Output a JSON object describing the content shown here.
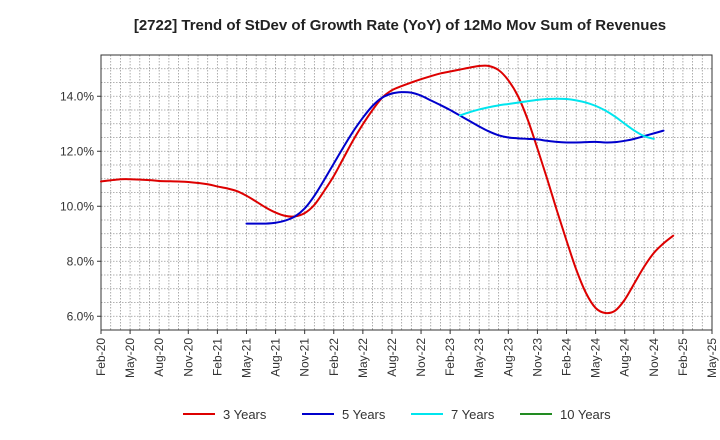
{
  "chart_data": {
    "type": "line",
    "title": "[2722]  Trend of StDev of Growth Rate (YoY) of 12Mo Mov Sum of Revenues",
    "xlabel": "",
    "ylabel": "",
    "ylim": [
      5.5,
      15.5
    ],
    "yticks": [
      6.0,
      8.0,
      10.0,
      12.0,
      14.0
    ],
    "ytick_labels": [
      "6.0%",
      "8.0%",
      "10.0%",
      "12.0%",
      "14.0%"
    ],
    "xrange": [
      0,
      63
    ],
    "xticks": [
      0,
      3,
      6,
      9,
      12,
      15,
      18,
      21,
      24,
      27,
      30,
      33,
      36,
      39,
      42,
      45,
      48,
      51,
      54,
      57,
      60,
      63
    ],
    "xtick_labels": [
      "Feb-20",
      "May-20",
      "Aug-20",
      "Nov-20",
      "Feb-21",
      "May-21",
      "Aug-21",
      "Nov-21",
      "Feb-22",
      "May-22",
      "Aug-22",
      "Nov-22",
      "Feb-23",
      "May-23",
      "Aug-23",
      "Nov-23",
      "Feb-24",
      "May-24",
      "Aug-24",
      "Nov-24",
      "Feb-25",
      "May-25"
    ],
    "grid": true,
    "legend_position": "bottom",
    "series": [
      {
        "name": "3 Years",
        "color": "#dd0000",
        "points": [
          [
            0,
            10.9
          ],
          [
            2,
            10.98
          ],
          [
            3,
            10.98
          ],
          [
            5,
            10.95
          ],
          [
            6,
            10.92
          ],
          [
            8,
            10.9
          ],
          [
            9,
            10.88
          ],
          [
            11,
            10.8
          ],
          [
            12,
            10.72
          ],
          [
            13,
            10.65
          ],
          [
            14,
            10.55
          ],
          [
            15,
            10.38
          ],
          [
            16,
            10.17
          ],
          [
            17,
            9.95
          ],
          [
            18,
            9.77
          ],
          [
            19,
            9.65
          ],
          [
            20,
            9.63
          ],
          [
            21,
            9.75
          ],
          [
            22,
            10.05
          ],
          [
            23,
            10.55
          ],
          [
            24,
            11.1
          ],
          [
            25,
            11.75
          ],
          [
            26,
            12.4
          ],
          [
            27,
            12.98
          ],
          [
            28,
            13.5
          ],
          [
            29,
            13.95
          ],
          [
            30,
            14.22
          ],
          [
            31,
            14.37
          ],
          [
            32,
            14.5
          ],
          [
            33,
            14.62
          ],
          [
            34,
            14.73
          ],
          [
            35,
            14.83
          ],
          [
            36,
            14.9
          ],
          [
            37,
            14.97
          ],
          [
            38,
            15.04
          ],
          [
            39,
            15.1
          ],
          [
            40,
            15.1
          ],
          [
            41,
            14.95
          ],
          [
            42,
            14.58
          ],
          [
            43,
            14.0
          ],
          [
            44,
            13.15
          ],
          [
            45,
            12.1
          ],
          [
            46,
            11.0
          ],
          [
            47,
            9.85
          ],
          [
            48,
            8.75
          ],
          [
            49,
            7.7
          ],
          [
            50,
            6.85
          ],
          [
            51,
            6.3
          ],
          [
            52,
            6.12
          ],
          [
            53,
            6.2
          ],
          [
            54,
            6.6
          ],
          [
            55,
            7.2
          ],
          [
            56,
            7.8
          ],
          [
            57,
            8.3
          ],
          [
            58,
            8.65
          ],
          [
            59,
            8.93
          ]
        ]
      },
      {
        "name": "5 Years",
        "color": "#0000cc",
        "points": [
          [
            15,
            9.37
          ],
          [
            16,
            9.37
          ],
          [
            17,
            9.37
          ],
          [
            18,
            9.4
          ],
          [
            19,
            9.48
          ],
          [
            20,
            9.63
          ],
          [
            21,
            9.92
          ],
          [
            22,
            10.38
          ],
          [
            23,
            10.95
          ],
          [
            24,
            11.55
          ],
          [
            25,
            12.15
          ],
          [
            26,
            12.72
          ],
          [
            27,
            13.22
          ],
          [
            28,
            13.65
          ],
          [
            29,
            13.95
          ],
          [
            30,
            14.1
          ],
          [
            31,
            14.15
          ],
          [
            32,
            14.13
          ],
          [
            33,
            14.02
          ],
          [
            34,
            13.85
          ],
          [
            35,
            13.68
          ],
          [
            36,
            13.5
          ],
          [
            37,
            13.3
          ],
          [
            38,
            13.1
          ],
          [
            39,
            12.9
          ],
          [
            40,
            12.72
          ],
          [
            41,
            12.58
          ],
          [
            42,
            12.5
          ],
          [
            43,
            12.47
          ],
          [
            44,
            12.45
          ],
          [
            45,
            12.43
          ],
          [
            46,
            12.38
          ],
          [
            47,
            12.34
          ],
          [
            48,
            12.32
          ],
          [
            49,
            12.32
          ],
          [
            50,
            12.33
          ],
          [
            51,
            12.34
          ],
          [
            52,
            12.32
          ],
          [
            53,
            12.33
          ],
          [
            54,
            12.38
          ],
          [
            55,
            12.45
          ],
          [
            56,
            12.55
          ],
          [
            57,
            12.65
          ],
          [
            58,
            12.75
          ]
        ]
      },
      {
        "name": "7 Years",
        "color": "#00e5ee",
        "points": [
          [
            37,
            13.3
          ],
          [
            38,
            13.42
          ],
          [
            39,
            13.52
          ],
          [
            40,
            13.6
          ],
          [
            41,
            13.67
          ],
          [
            42,
            13.72
          ],
          [
            43,
            13.77
          ],
          [
            44,
            13.82
          ],
          [
            45,
            13.87
          ],
          [
            46,
            13.9
          ],
          [
            47,
            13.91
          ],
          [
            48,
            13.9
          ],
          [
            49,
            13.85
          ],
          [
            50,
            13.77
          ],
          [
            51,
            13.65
          ],
          [
            52,
            13.48
          ],
          [
            53,
            13.26
          ],
          [
            54,
            13.0
          ],
          [
            55,
            12.75
          ],
          [
            56,
            12.55
          ],
          [
            57,
            12.45
          ]
        ]
      },
      {
        "name": "10 Years",
        "color": "#228B22",
        "points": []
      }
    ]
  }
}
